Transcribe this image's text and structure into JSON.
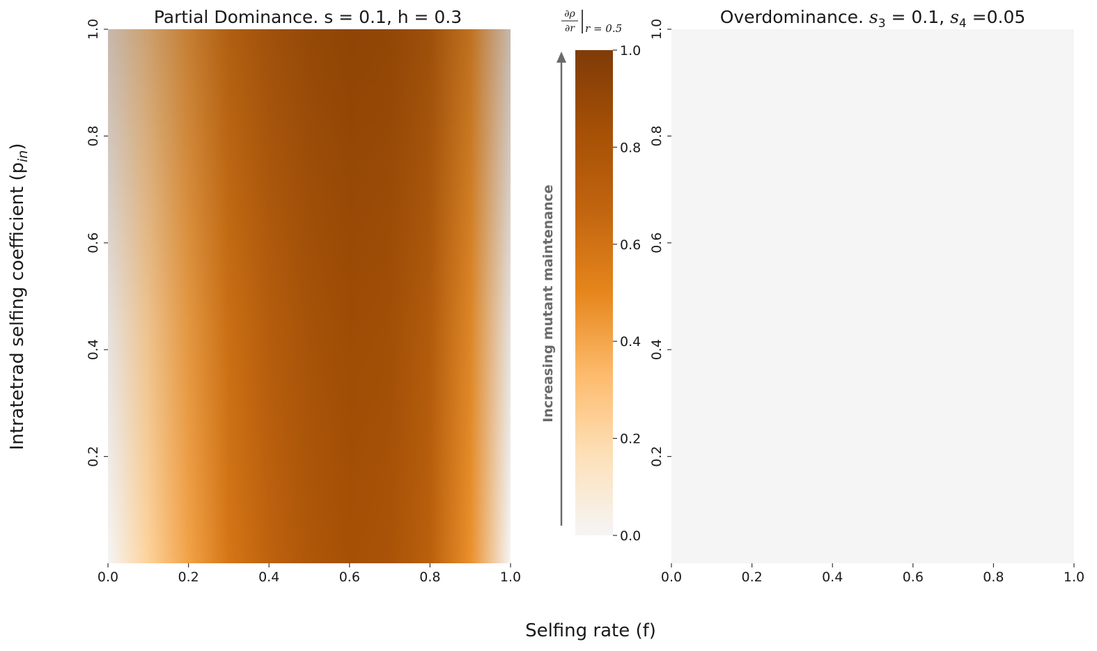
{
  "figure": {
    "xlabel": "Selfing rate (f)",
    "ylabel": "Intratetrad selfing coefficient (p",
    "ylabel_sub": "in",
    "ylabel_close": ")"
  },
  "colorbar": {
    "label_num": "∂ρ",
    "label_den": "∂r",
    "label_sub": "r = 0.5",
    "ticks": [
      "0.0",
      "0.2",
      "0.4",
      "0.6",
      "0.8",
      "1.0"
    ],
    "tick_values": [
      0.0,
      0.2,
      0.4,
      0.6,
      0.8,
      1.0
    ],
    "range": [
      0,
      1
    ],
    "colormap": [
      "#f5f5f5",
      "#fde0b8",
      "#fdba6b",
      "#e6861c",
      "#c26510",
      "#a55005",
      "#7f3b08"
    ],
    "arrow_label": "Increasing mutant maintenance",
    "arrow_color": "#6b6b6b"
  },
  "chart_data": [
    {
      "type": "heatmap",
      "title_prefix": "Partial Dominance. s = 0.1, h = 0.3",
      "xlabel": "Selfing rate (f)",
      "ylabel": "Intratetrad selfing coefficient (p_in)",
      "xlim": [
        0.0,
        1.0
      ],
      "ylim": [
        0.0,
        1.0
      ],
      "xticks": [
        "0.0",
        "0.2",
        "0.4",
        "0.6",
        "0.8",
        "1.0"
      ],
      "xtick_values": [
        0.0,
        0.2,
        0.4,
        0.6,
        0.8,
        1.0
      ],
      "yticks": [
        "0.2",
        "0.4",
        "0.6",
        "0.8",
        "1.0"
      ],
      "ytick_values": [
        0.2,
        0.4,
        0.6,
        0.8,
        1.0
      ],
      "x": [
        0.0,
        0.1,
        0.2,
        0.3,
        0.4,
        0.5,
        0.6,
        0.7,
        0.8,
        0.9,
        1.0
      ],
      "y": [
        0.0,
        0.2,
        0.4,
        0.6,
        0.8,
        1.0
      ],
      "z": [
        [
          0.0,
          0.2,
          0.35,
          0.5,
          0.58,
          0.66,
          0.7,
          0.67,
          0.58,
          0.38,
          0.0
        ],
        [
          0.0,
          0.21,
          0.37,
          0.52,
          0.61,
          0.69,
          0.73,
          0.7,
          0.61,
          0.4,
          0.0
        ],
        [
          0.0,
          0.22,
          0.39,
          0.55,
          0.65,
          0.73,
          0.78,
          0.75,
          0.65,
          0.43,
          0.0
        ],
        [
          0.0,
          0.23,
          0.41,
          0.58,
          0.69,
          0.78,
          0.83,
          0.81,
          0.71,
          0.47,
          0.0
        ],
        [
          0.0,
          0.24,
          0.43,
          0.61,
          0.73,
          0.83,
          0.89,
          0.88,
          0.77,
          0.52,
          0.0
        ],
        [
          0.0,
          0.25,
          0.45,
          0.64,
          0.77,
          0.88,
          0.95,
          0.95,
          0.83,
          0.57,
          0.1
        ]
      ]
    },
    {
      "type": "heatmap",
      "title_prefix": "Overdominance. ",
      "title_s3": "s",
      "title_s3_sub": "3",
      "title_mid": " = 0.1, ",
      "title_s4": "s",
      "title_s4_sub": "4",
      "title_suffix": " =0.05",
      "xlim": [
        0.0,
        1.0
      ],
      "ylim": [
        0.0,
        1.0
      ],
      "xticks": [
        "0.0",
        "0.2",
        "0.4",
        "0.6",
        "0.8",
        "1.0"
      ],
      "xtick_values": [
        0.0,
        0.2,
        0.4,
        0.6,
        0.8,
        1.0
      ],
      "yticks": [
        "0.2",
        "0.4",
        "0.6",
        "0.8",
        "1.0"
      ],
      "ytick_values": [
        0.2,
        0.4,
        0.6,
        0.8,
        1.0
      ],
      "x": [
        0.0,
        1.0
      ],
      "y": [
        0.0,
        1.0
      ],
      "z": [
        [
          0.0,
          0.0
        ],
        [
          0.0,
          0.0
        ]
      ]
    }
  ]
}
